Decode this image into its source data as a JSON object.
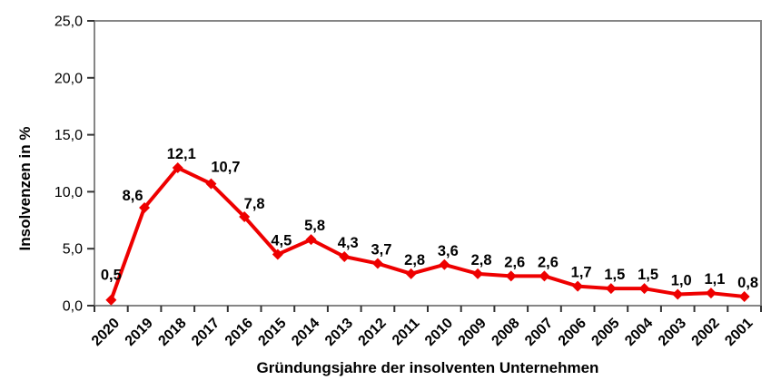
{
  "chart_data": {
    "type": "line",
    "title": "",
    "xlabel": "Gründungsjahre der insolventen Unternehmen",
    "ylabel": "Insolvenzen in %",
    "categories": [
      "2020",
      "2019",
      "2018",
      "2017",
      "2016",
      "2015",
      "2014",
      "2013",
      "2012",
      "2011",
      "2010",
      "2009",
      "2008",
      "2007",
      "2006",
      "2005",
      "2004",
      "2003",
      "2002",
      "2001"
    ],
    "values": [
      0.5,
      8.6,
      12.1,
      10.7,
      7.8,
      4.5,
      5.8,
      4.3,
      3.7,
      2.8,
      3.6,
      2.8,
      2.6,
      2.6,
      1.7,
      1.5,
      1.5,
      1.0,
      1.1,
      0.8
    ],
    "value_labels": [
      "0,5",
      "8,6",
      "12,1",
      "10,7",
      "7,8",
      "4,5",
      "5,8",
      "4,3",
      "3,7",
      "2,8",
      "3,6",
      "2,8",
      "2,6",
      "2,6",
      "1,7",
      "1,5",
      "1,5",
      "1,0",
      "1,1",
      "0,8"
    ],
    "y_ticks": [
      {
        "v": 0,
        "label": "0,0"
      },
      {
        "v": 5,
        "label": "5,0"
      },
      {
        "v": 10,
        "label": "10,0"
      },
      {
        "v": 15,
        "label": "15,0"
      },
      {
        "v": 20,
        "label": "20,0"
      },
      {
        "v": 25,
        "label": "25,0"
      }
    ],
    "ylim": [
      0,
      25
    ],
    "grid": false,
    "legend": "none",
    "marker": "diamond",
    "colors": {
      "series": "#ee0000",
      "border": "#858585",
      "tick": "#333333",
      "text": "#000000",
      "plot_bg": "#ffffff"
    }
  }
}
